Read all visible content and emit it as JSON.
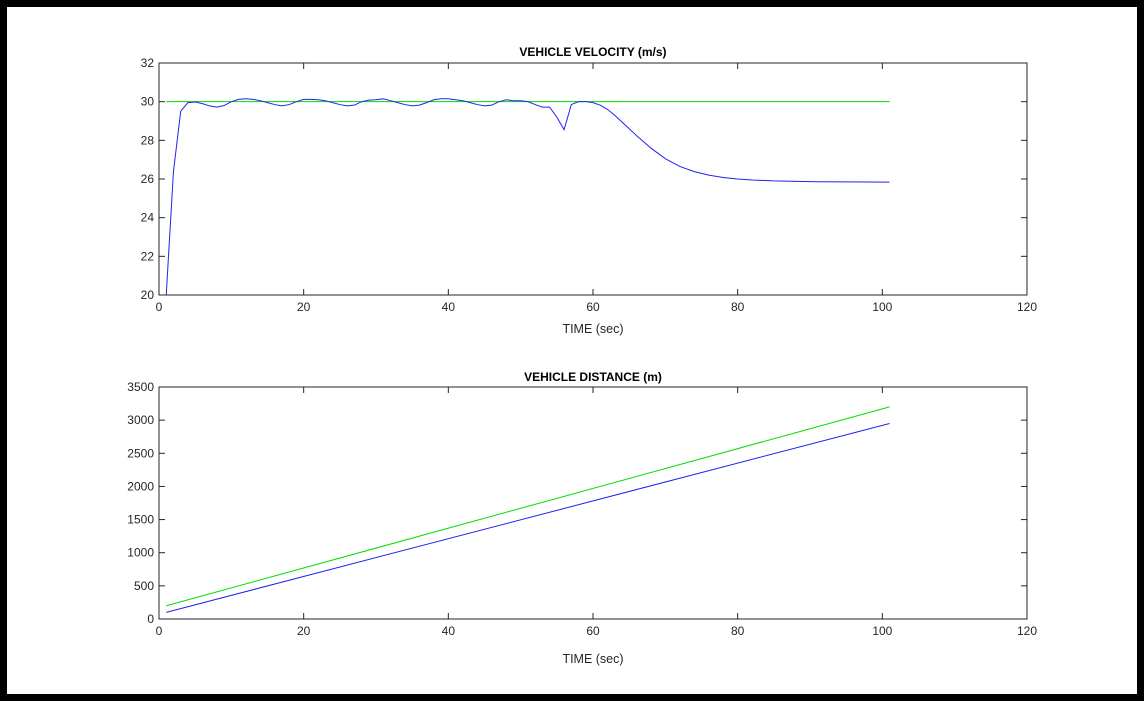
{
  "colors": {
    "ref": "#00dd00",
    "actual": "#2222ee",
    "axis": "#262626",
    "background": "#ffffff",
    "border": "#000000"
  },
  "chart_data": [
    {
      "type": "line",
      "title": "VEHICLE VELOCITY (m/s)",
      "xlabel": "TIME (sec)",
      "ylabel": "",
      "xlim": [
        0,
        120
      ],
      "ylim": [
        20,
        32
      ],
      "xticks": [
        0,
        20,
        40,
        60,
        80,
        100,
        120
      ],
      "yticks": [
        20,
        22,
        24,
        26,
        28,
        30,
        32
      ],
      "grid": false,
      "series": [
        {
          "color": "#00dd00",
          "x": [
            1,
            101
          ],
          "y": [
            30,
            30
          ]
        },
        {
          "color": "#2222ee",
          "x": [
            1,
            2,
            3,
            4,
            5,
            6,
            7,
            8,
            9,
            10,
            11,
            12,
            13,
            14,
            15,
            16,
            17,
            18,
            19,
            20,
            21,
            22,
            23,
            24,
            25,
            26,
            27,
            28,
            29,
            30,
            31,
            32,
            33,
            34,
            35,
            36,
            37,
            38,
            39,
            40,
            41,
            42,
            43,
            44,
            45,
            46,
            47,
            48,
            49,
            50,
            51,
            52,
            53,
            54,
            55,
            56,
            57,
            58,
            59,
            60,
            61,
            62,
            63,
            64,
            65,
            66,
            68,
            70,
            72,
            74,
            76,
            78,
            80,
            82,
            85,
            88,
            91,
            95,
            101
          ],
          "y": [
            20,
            26.4,
            29.5,
            29.95,
            29.98,
            29.9,
            29.78,
            29.72,
            29.8,
            30.0,
            30.12,
            30.15,
            30.12,
            30.05,
            29.95,
            29.85,
            29.78,
            29.85,
            30.0,
            30.12,
            30.12,
            30.1,
            30.05,
            29.95,
            29.85,
            29.78,
            29.82,
            30.0,
            30.08,
            30.1,
            30.15,
            30.05,
            29.95,
            29.85,
            29.78,
            29.82,
            29.95,
            30.1,
            30.15,
            30.15,
            30.1,
            30.05,
            29.95,
            29.85,
            29.78,
            29.82,
            30.0,
            30.1,
            30.05,
            30.05,
            30.0,
            29.85,
            29.72,
            29.72,
            29.2,
            28.55,
            29.85,
            30.0,
            30.0,
            29.95,
            29.82,
            29.6,
            29.3,
            28.95,
            28.6,
            28.25,
            27.6,
            27.05,
            26.65,
            26.38,
            26.2,
            26.08,
            26.0,
            25.95,
            25.9,
            25.88,
            25.86,
            25.85,
            25.84
          ]
        }
      ]
    },
    {
      "type": "line",
      "title": "VEHICLE DISTANCE (m)",
      "xlabel": "TIME (sec)",
      "ylabel": "",
      "xlim": [
        0,
        120
      ],
      "ylim": [
        0,
        3500
      ],
      "xticks": [
        0,
        20,
        40,
        60,
        80,
        100,
        120
      ],
      "yticks": [
        0,
        500,
        1000,
        1500,
        2000,
        2500,
        3000,
        3500
      ],
      "grid": false,
      "series": [
        {
          "color": "#00dd00",
          "x": [
            1,
            101
          ],
          "y": [
            200,
            3200
          ]
        },
        {
          "color": "#2222ee",
          "x": [
            1,
            101
          ],
          "y": [
            100,
            2950
          ]
        }
      ]
    }
  ]
}
